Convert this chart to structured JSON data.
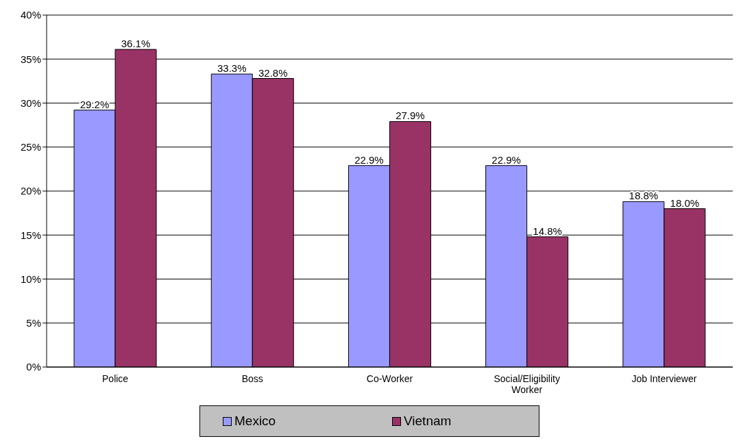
{
  "chart_data": {
    "type": "bar",
    "categories": [
      "Police",
      "Boss",
      "Co-Worker",
      "Social/Eligibility Worker",
      "Job Interviewer"
    ],
    "series": [
      {
        "name": "Mexico",
        "color": "#9999ff",
        "values": [
          29.2,
          33.3,
          22.9,
          22.9,
          18.8
        ],
        "value_labels": [
          "29.2%",
          "33.3%",
          "22.9%",
          "22.9%",
          "18.8%"
        ]
      },
      {
        "name": "Vietnam",
        "color": "#993366",
        "values": [
          36.1,
          32.8,
          27.9,
          14.8,
          18.0
        ],
        "value_labels": [
          "36.1%",
          "32.8%",
          "27.9%",
          "14.8%",
          "18.0%"
        ]
      }
    ],
    "ylim": [
      0,
      40
    ],
    "yticks": [
      {
        "value": 0,
        "label": "0%"
      },
      {
        "value": 5,
        "label": "5%"
      },
      {
        "value": 10,
        "label": "10%"
      },
      {
        "value": 15,
        "label": "15%"
      },
      {
        "value": 20,
        "label": "20%"
      },
      {
        "value": 25,
        "label": "25%"
      },
      {
        "value": 30,
        "label": "30%"
      },
      {
        "value": 35,
        "label": "35%"
      },
      {
        "value": 40,
        "label": "40%"
      }
    ],
    "grid": "y",
    "legend": "bottom"
  }
}
